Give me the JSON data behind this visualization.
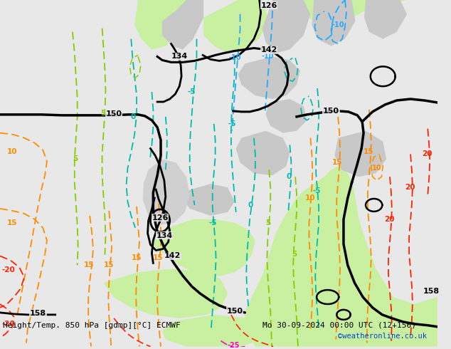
{
  "title_left": "Height/Temp. 850 hPa [gdmp][°C] ECMWF",
  "title_right": "Mo 30-09-2024 00:00 UTC (12+156)",
  "watermark": "©weatheronline.co.uk",
  "bg_land_warm": "#c8f0a0",
  "bg_land_cool": "#c8c8c8",
  "bg_sea": "#e8e8e8",
  "col_height": "#000000",
  "col_orange": "#ff8c00",
  "col_ygreen": "#88cc00",
  "col_teal": "#00bbaa",
  "col_blue": "#22aaff",
  "col_red": "#ff2200",
  "col_magenta": "#ff00cc",
  "figsize": [
    6.34,
    4.9
  ],
  "dpi": 100
}
